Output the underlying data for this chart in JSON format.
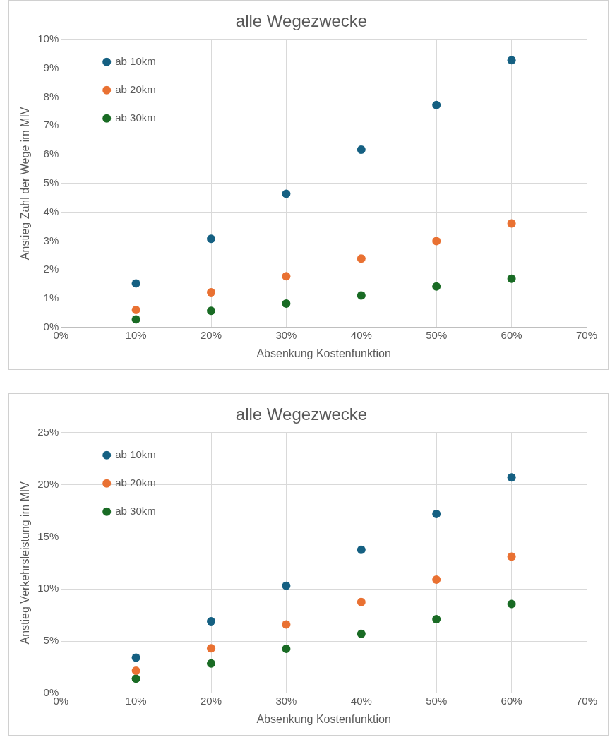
{
  "chart_data": [
    {
      "type": "scatter",
      "title": "alle Wegezwecke",
      "xlabel": "Absenkung Kostenfunktion",
      "ylabel": "Anstieg Zahl der Wege im MIV",
      "x": [
        10,
        20,
        30,
        40,
        50,
        60
      ],
      "series": [
        {
          "name": "ab 10km",
          "color": "#156082",
          "values": [
            1.53,
            3.08,
            4.64,
            6.17,
            7.72,
            9.28
          ]
        },
        {
          "name": "ab 20km",
          "color": "#e97132",
          "values": [
            0.61,
            1.22,
            1.78,
            2.39,
            3.0,
            3.61
          ]
        },
        {
          "name": "ab 30km",
          "color": "#196b24",
          "values": [
            0.28,
            0.58,
            0.83,
            1.11,
            1.42,
            1.69
          ]
        }
      ],
      "xlim": [
        0,
        70
      ],
      "xticks": [
        {
          "value": 0,
          "label": "0%"
        },
        {
          "value": 10,
          "label": "10%"
        },
        {
          "value": 20,
          "label": "20%"
        },
        {
          "value": 30,
          "label": "30%"
        },
        {
          "value": 40,
          "label": "40%"
        },
        {
          "value": 50,
          "label": "50%"
        },
        {
          "value": 60,
          "label": "60%"
        },
        {
          "value": 70,
          "label": "70%"
        }
      ],
      "ylim": [
        0,
        10
      ],
      "yticks": [
        {
          "value": 0,
          "label": "0%"
        },
        {
          "value": 1,
          "label": "1%"
        },
        {
          "value": 2,
          "label": "2%"
        },
        {
          "value": 3,
          "label": "3%"
        },
        {
          "value": 4,
          "label": "4%"
        },
        {
          "value": 5,
          "label": "5%"
        },
        {
          "value": 6,
          "label": "6%"
        },
        {
          "value": 7,
          "label": "7%"
        },
        {
          "value": 8,
          "label": "8%"
        },
        {
          "value": 9,
          "label": "9%"
        },
        {
          "value": 10,
          "label": "10%"
        }
      ],
      "grid": true,
      "legend": "top left",
      "marker": "circle"
    },
    {
      "type": "scatter",
      "title": "alle Wegezwecke",
      "xlabel": "Absenkung Kostenfunktion",
      "ylabel": "Anstieg Verkehrsleistung im MIV",
      "x": [
        10,
        20,
        30,
        40,
        50,
        60
      ],
      "series": [
        {
          "name": "ab 10km",
          "color": "#156082",
          "values": [
            3.4,
            6.9,
            10.3,
            13.75,
            17.2,
            20.7
          ]
        },
        {
          "name": "ab 20km",
          "color": "#e97132",
          "values": [
            2.15,
            4.3,
            6.6,
            8.75,
            10.9,
            13.1
          ]
        },
        {
          "name": "ab 30km",
          "color": "#196b24",
          "values": [
            1.4,
            2.85,
            4.25,
            5.7,
            7.1,
            8.55
          ]
        }
      ],
      "xlim": [
        0,
        70
      ],
      "xticks": [
        {
          "value": 0,
          "label": "0%"
        },
        {
          "value": 10,
          "label": "10%"
        },
        {
          "value": 20,
          "label": "20%"
        },
        {
          "value": 30,
          "label": "30%"
        },
        {
          "value": 40,
          "label": "40%"
        },
        {
          "value": 50,
          "label": "50%"
        },
        {
          "value": 60,
          "label": "60%"
        },
        {
          "value": 70,
          "label": "70%"
        }
      ],
      "ylim": [
        0,
        25
      ],
      "yticks": [
        {
          "value": 0,
          "label": "0%"
        },
        {
          "value": 5,
          "label": "5%"
        },
        {
          "value": 10,
          "label": "10%"
        },
        {
          "value": 15,
          "label": "15%"
        },
        {
          "value": 20,
          "label": "20%"
        },
        {
          "value": 25,
          "label": "25%"
        }
      ],
      "grid": true,
      "legend": "top left",
      "marker": "circle"
    }
  ]
}
